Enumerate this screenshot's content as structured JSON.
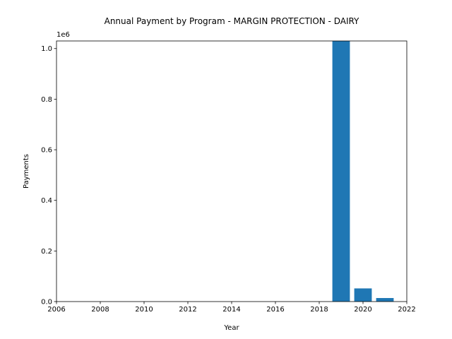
{
  "chart_data": {
    "type": "bar",
    "title": "Annual Payment by Program - MARGIN PROTECTION  - DAIRY",
    "xlabel": "Year",
    "ylabel": "Payments",
    "y_offset_label": "1e6",
    "x": [
      2019,
      2020,
      2021
    ],
    "values": [
      1030000,
      52000,
      14000
    ],
    "xlim": [
      2006,
      2022
    ],
    "ylim": [
      0,
      1030000
    ],
    "x_ticks": [
      2006,
      2008,
      2010,
      2012,
      2014,
      2016,
      2018,
      2020,
      2022
    ],
    "y_ticks": [
      0.0,
      0.2,
      0.4,
      0.6,
      0.8,
      1.0
    ],
    "y_tick_labels": [
      "0.0",
      "0.2",
      "0.4",
      "0.6",
      "0.8",
      "1.0"
    ],
    "y_tick_scale": 1000000,
    "bar_width": 0.8,
    "bar_color": "#1f77b4",
    "grid": false,
    "legend": "none"
  }
}
